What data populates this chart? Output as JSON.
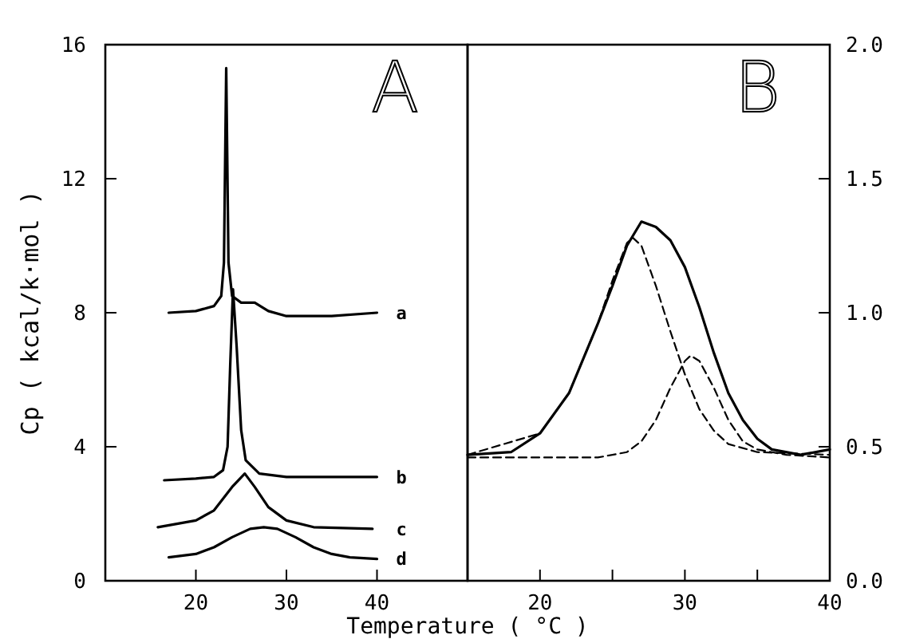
{
  "chart_data": [
    {
      "type": "line",
      "title": "A",
      "ylabel": "Cp ( kcal/k·mol )",
      "xlabel": "Temperature ( °C )",
      "xlim": [
        10,
        50
      ],
      "xticks": [
        20,
        30,
        40
      ],
      "ylim": [
        0,
        16
      ],
      "yticks": [
        0,
        4,
        8,
        12,
        16
      ],
      "grid": false,
      "series": [
        {
          "name": "a",
          "color": "#000000",
          "x": [
            17,
            20,
            22,
            22.8,
            23.1,
            23.35,
            23.6,
            24,
            25,
            26.5,
            28,
            30,
            35,
            40
          ],
          "values": [
            8.0,
            8.05,
            8.2,
            8.5,
            9.5,
            15.3,
            9.5,
            8.5,
            8.3,
            8.3,
            8.05,
            7.9,
            7.9,
            8.0
          ]
        },
        {
          "name": "b",
          "color": "#000000",
          "x": [
            16.5,
            20,
            22,
            23,
            23.5,
            23.8,
            24.1,
            24.5,
            25,
            25.5,
            27,
            30,
            40
          ],
          "values": [
            3.0,
            3.05,
            3.1,
            3.3,
            4.0,
            6.5,
            8.7,
            7.0,
            4.5,
            3.6,
            3.2,
            3.1,
            3.1
          ]
        },
        {
          "name": "c",
          "color": "#000000",
          "x": [
            15.8,
            20,
            22,
            24,
            25.4,
            26.5,
            28,
            30,
            33,
            39.5
          ],
          "values": [
            1.6,
            1.8,
            2.1,
            2.8,
            3.2,
            2.8,
            2.2,
            1.8,
            1.6,
            1.55
          ]
        },
        {
          "name": "d",
          "color": "#000000",
          "x": [
            17,
            20,
            22,
            24,
            26,
            27.5,
            29,
            31,
            33,
            35,
            37,
            40
          ],
          "values": [
            0.7,
            0.8,
            1.0,
            1.3,
            1.55,
            1.6,
            1.55,
            1.3,
            1.0,
            0.8,
            0.7,
            0.65
          ]
        }
      ]
    },
    {
      "type": "line",
      "title": "B",
      "xlim": [
        15,
        40
      ],
      "xticks": [
        20,
        {
          "value": 25,
          "label": null
        },
        30,
        {
          "value": 35,
          "label": null
        },
        40
      ],
      "ylim": [
        0,
        2
      ],
      "yticks": [
        "0.0",
        0.5,
        "1.0",
        1.5,
        "2.0"
      ],
      "grid": false,
      "series": [
        {
          "color": "#000000",
          "line_style": "solid",
          "x": [
            15,
            18,
            20,
            22,
            24,
            25,
            26,
            27,
            28,
            29,
            30,
            31,
            32,
            33,
            34,
            35,
            36,
            38,
            40
          ],
          "values": [
            0.47,
            0.48,
            0.55,
            0.7,
            0.96,
            1.1,
            1.25,
            1.34,
            1.32,
            1.27,
            1.17,
            1.02,
            0.85,
            0.7,
            0.6,
            0.53,
            0.49,
            0.47,
            0.49
          ]
        },
        {
          "color": "#000000",
          "line_style": "dashed",
          "x": [
            15,
            20,
            22,
            24,
            25,
            26,
            26.4,
            27,
            28,
            29,
            30,
            31,
            32,
            33,
            35,
            40
          ],
          "values": [
            0.47,
            0.55,
            0.7,
            0.96,
            1.12,
            1.26,
            1.28,
            1.25,
            1.1,
            0.93,
            0.77,
            0.64,
            0.56,
            0.51,
            0.48,
            0.47
          ]
        },
        {
          "color": "#000000",
          "line_style": "dashed",
          "x": [
            15,
            24,
            26,
            27,
            28,
            29,
            30,
            30.4,
            31,
            32,
            33,
            34,
            35,
            37,
            40
          ],
          "values": [
            0.46,
            0.46,
            0.48,
            0.52,
            0.6,
            0.72,
            0.82,
            0.84,
            0.82,
            0.72,
            0.6,
            0.52,
            0.49,
            0.47,
            0.46
          ]
        }
      ]
    }
  ]
}
